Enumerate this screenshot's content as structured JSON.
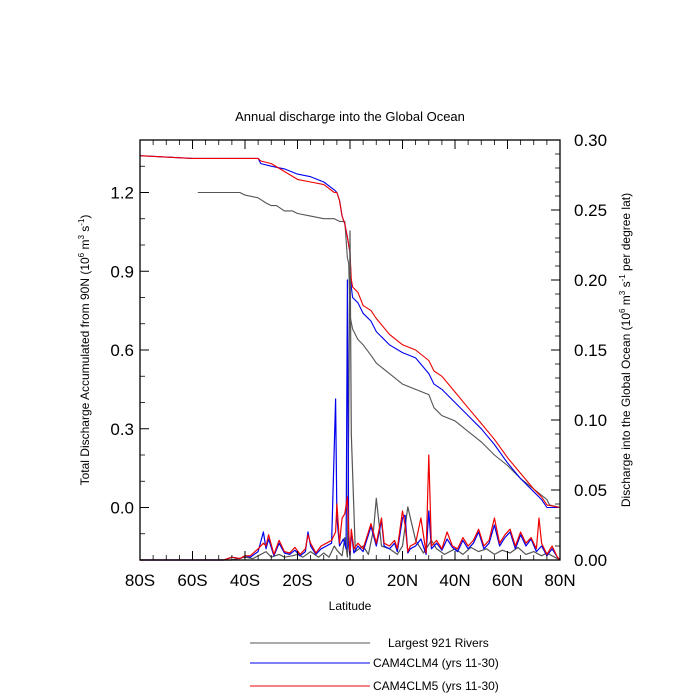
{
  "chart_data": {
    "type": "line",
    "title": "Annual discharge into the Global Ocean",
    "xlabel": "Latitude",
    "ylabel_left": "Total Discharge Accumulated from 90N (10^6 m^3 s^-1)",
    "ylabel_left_parts": {
      "pre": "Total Discharge Accumulated from 90N (10",
      "e1": "6",
      "mid1": " m",
      "e2": "3",
      "mid2": " s",
      "e3": "-1",
      "post": ")"
    },
    "ylabel_right": "Discharge into the Global Ocean (10^6 m^3 s^-1 per degree lat)",
    "ylabel_right_parts": {
      "pre": "Discharge into the Global Ocean (10",
      "e1": "6",
      "mid1": " m",
      "e2": "3",
      "mid2": " s",
      "e3": "-1",
      "post": " per degree lat)"
    },
    "xlim": [
      -80,
      80
    ],
    "ylim_left": [
      -0.2,
      1.4
    ],
    "ylim_right": [
      0,
      0.3
    ],
    "x_ticks": [
      -80,
      -60,
      -40,
      -20,
      0,
      20,
      40,
      60,
      80
    ],
    "x_tick_labels": [
      "80S",
      "60S",
      "40S",
      "20S",
      "0",
      "20N",
      "40N",
      "60N",
      "80N"
    ],
    "y_left_ticks": [
      0.0,
      0.3,
      0.6,
      0.9,
      1.2
    ],
    "y_left_tick_labels": [
      "0.0",
      "0.3",
      "0.6",
      "0.9",
      "1.2"
    ],
    "y_right_ticks": [
      0,
      0.05,
      0.1,
      0.15,
      0.2,
      0.25,
      0.3
    ],
    "y_right_tick_labels": [
      "0.00",
      "0.05",
      "0.10",
      "0.15",
      "0.20",
      "0.25",
      "0.30"
    ],
    "legend_position": "bottom-center",
    "series": [
      {
        "name": "Largest 921 Rivers",
        "color": "#555555",
        "axis": "left",
        "x": [
          -58,
          -42,
          -40,
          -35,
          -32,
          -30,
          -28,
          -25,
          -22,
          -20,
          -15,
          -10,
          -6,
          -4,
          -2,
          -1,
          -0.5,
          0,
          1,
          3,
          5,
          8,
          10,
          15,
          20,
          25,
          30,
          32,
          35,
          40,
          45,
          50,
          55,
          60,
          65,
          70,
          75,
          76,
          80
        ],
        "y": [
          1.2,
          1.2,
          1.19,
          1.18,
          1.16,
          1.15,
          1.15,
          1.13,
          1.13,
          1.12,
          1.11,
          1.1,
          1.1,
          1.09,
          1.09,
          0.95,
          0.93,
          0.73,
          0.68,
          0.64,
          0.62,
          0.58,
          0.55,
          0.51,
          0.47,
          0.45,
          0.43,
          0.38,
          0.35,
          0.33,
          0.29,
          0.25,
          0.2,
          0.16,
          0.11,
          0.07,
          0.03,
          0.01,
          0.0
        ]
      },
      {
        "name": "CAM4CLM4 (yrs 11-30)",
        "color": "#0000ee",
        "axis": "left",
        "x": [
          -80,
          -60,
          -35,
          -34,
          -30,
          -25,
          -20,
          -15,
          -10,
          -6,
          -5,
          -4,
          -3,
          -2,
          -1,
          0,
          0.5,
          1,
          3,
          5,
          8,
          10,
          15,
          20,
          25,
          30,
          32,
          35,
          40,
          45,
          50,
          55,
          60,
          65,
          70,
          73,
          75,
          80
        ],
        "y": [
          1.34,
          1.33,
          1.33,
          1.31,
          1.3,
          1.29,
          1.27,
          1.26,
          1.24,
          1.21,
          1.2,
          1.17,
          1.11,
          1.08,
          1.03,
          0.97,
          0.84,
          0.8,
          0.78,
          0.74,
          0.71,
          0.67,
          0.62,
          0.59,
          0.57,
          0.51,
          0.47,
          0.45,
          0.4,
          0.35,
          0.3,
          0.24,
          0.17,
          0.11,
          0.06,
          0.03,
          0.0,
          0.0
        ]
      },
      {
        "name": "CAM4CLM5 (yrs 11-30)",
        "color": "#ee0000",
        "axis": "left",
        "x": [
          -80,
          -60,
          -35,
          -34,
          -30,
          -25,
          -20,
          -15,
          -10,
          -6,
          -5,
          -4,
          -3,
          -2,
          -1,
          0,
          0.5,
          1,
          3,
          5,
          8,
          10,
          15,
          20,
          25,
          30,
          32,
          35,
          40,
          45,
          50,
          55,
          60,
          65,
          70,
          73,
          75,
          80
        ],
        "y": [
          1.34,
          1.33,
          1.33,
          1.32,
          1.31,
          1.28,
          1.25,
          1.24,
          1.23,
          1.2,
          1.2,
          1.17,
          1.11,
          1.08,
          1.03,
          0.97,
          0.87,
          0.84,
          0.82,
          0.77,
          0.75,
          0.72,
          0.66,
          0.62,
          0.6,
          0.56,
          0.52,
          0.5,
          0.44,
          0.38,
          0.32,
          0.26,
          0.19,
          0.13,
          0.07,
          0.04,
          0.01,
          0.0
        ]
      },
      {
        "name": "Largest 921 Rivers",
        "color": "#555555",
        "axis": "right",
        "x": [
          -80,
          -60,
          -45,
          -40,
          -37,
          -35,
          -32,
          -30,
          -27,
          -25,
          -22,
          -20,
          -18,
          -15,
          -12,
          -10,
          -8,
          -6,
          -5,
          -3,
          -2,
          -1,
          -0.5,
          0,
          0.5,
          2,
          5,
          7,
          9,
          10,
          12,
          15,
          18,
          20,
          22,
          25,
          28,
          31,
          33,
          36,
          40,
          43,
          46,
          49,
          52,
          55,
          58,
          61,
          64,
          67,
          70,
          73,
          75,
          77,
          80
        ],
        "y": [
          0,
          0,
          0,
          0.002,
          0.001,
          0.003,
          0.006,
          0.002,
          0.004,
          0.002,
          0.003,
          0.004,
          0.002,
          0.006,
          0.002,
          0.005,
          0.002,
          0.01,
          0.007,
          0.003,
          0.016,
          0.002,
          0.1,
          0.235,
          0.09,
          0.006,
          0.01,
          0.004,
          0.022,
          0.044,
          0.01,
          0.008,
          0.004,
          0.01,
          0.038,
          0.014,
          0.005,
          0.014,
          0.008,
          0.004,
          0.008,
          0.004,
          0.009,
          0.006,
          0.008,
          0.004,
          0.007,
          0.005,
          0.009,
          0.004,
          0.006,
          0.003,
          0.005,
          0.003,
          0
        ]
      },
      {
        "name": "CAM4CLM4 (yrs 11-30)",
        "color": "#0000ee",
        "axis": "right",
        "x": [
          -80,
          -60,
          -48,
          -45,
          -42,
          -40,
          -38,
          -35,
          -33,
          -32,
          -31,
          -29,
          -27,
          -25,
          -23,
          -21,
          -19,
          -17,
          -16,
          -15,
          -13,
          -11,
          -9,
          -7,
          -5.5,
          -5,
          -4,
          -2.5,
          -1.5,
          -1,
          -0.5,
          0,
          0.5,
          1.5,
          3,
          5,
          7,
          8,
          10,
          12,
          13,
          15,
          17,
          18,
          20,
          21,
          22,
          23,
          25,
          27,
          29,
          30,
          31,
          33,
          35,
          37,
          39,
          41,
          43,
          45,
          47,
          49,
          51,
          53,
          55,
          57,
          59,
          61,
          63,
          65,
          67,
          69,
          71,
          73,
          75,
          77,
          79,
          80
        ],
        "y": [
          0,
          0,
          0,
          0.002,
          0.001,
          0.003,
          0.002,
          0.006,
          0.02,
          0.008,
          0.015,
          0.003,
          0.012,
          0.005,
          0.004,
          0.007,
          0.003,
          0.006,
          0.02,
          0.01,
          0.004,
          0.008,
          0.01,
          0.012,
          0.115,
          0.03,
          0.01,
          0.015,
          0.008,
          0.2,
          0.01,
          0.003,
          0.02,
          0.005,
          0.01,
          0.006,
          0.018,
          0.024,
          0.01,
          0.028,
          0.01,
          0.008,
          0.012,
          0.006,
          0.03,
          0.032,
          0.005,
          0.008,
          0.01,
          0.015,
          0.004,
          0.035,
          0.008,
          0.012,
          0.007,
          0.015,
          0.009,
          0.006,
          0.014,
          0.008,
          0.012,
          0.02,
          0.008,
          0.012,
          0.025,
          0.01,
          0.016,
          0.02,
          0.008,
          0.018,
          0.01,
          0.015,
          0.006,
          0.01,
          0.003,
          0.008,
          0.002,
          0
        ]
      },
      {
        "name": "CAM4CLM5 (yrs 11-30)",
        "color": "#ee0000",
        "axis": "right",
        "x": [
          -80,
          -60,
          -48,
          -45,
          -42,
          -40,
          -38,
          -35,
          -33,
          -32,
          -31,
          -29,
          -27,
          -25,
          -23,
          -21,
          -19,
          -17,
          -16,
          -15,
          -13,
          -11,
          -9,
          -7,
          -5.5,
          -5,
          -4,
          -3,
          -2,
          -1,
          -0.5,
          0,
          0.5,
          1.5,
          3,
          5,
          7,
          8,
          10,
          12,
          13,
          15,
          17,
          18,
          20,
          21,
          22,
          23,
          25,
          27,
          29,
          30,
          31,
          33,
          35,
          37,
          39,
          41,
          43,
          45,
          47,
          49,
          51,
          53,
          55,
          57,
          59,
          61,
          63,
          65,
          67,
          69,
          71,
          72,
          73,
          75,
          77,
          79,
          80
        ],
        "y": [
          0,
          0,
          0,
          0.002,
          0.001,
          0.003,
          0.003,
          0.008,
          0.012,
          0.01,
          0.018,
          0.004,
          0.014,
          0.006,
          0.005,
          0.009,
          0.004,
          0.008,
          0.018,
          0.012,
          0.005,
          0.01,
          0.012,
          0.014,
          0.02,
          0.04,
          0.012,
          0.03,
          0.033,
          0.045,
          0.02,
          0.004,
          0.022,
          0.008,
          0.012,
          0.008,
          0.02,
          0.026,
          0.012,
          0.03,
          0.012,
          0.01,
          0.014,
          0.008,
          0.035,
          0.025,
          0.006,
          0.01,
          0.012,
          0.03,
          0.005,
          0.075,
          0.01,
          0.014,
          0.008,
          0.02,
          0.01,
          0.008,
          0.016,
          0.01,
          0.014,
          0.022,
          0.01,
          0.014,
          0.03,
          0.012,
          0.018,
          0.022,
          0.01,
          0.02,
          0.012,
          0.016,
          0.008,
          0.03,
          0.012,
          0.004,
          0.01,
          0.002,
          0
        ]
      }
    ],
    "legend": [
      {
        "label": "Largest 921 Rivers",
        "color": "#555555"
      },
      {
        "label": "CAM4CLM4 (yrs 11-30)",
        "color": "#0000ee"
      },
      {
        "label": "CAM4CLM5 (yrs 11-30)",
        "color": "#ee0000"
      }
    ]
  }
}
